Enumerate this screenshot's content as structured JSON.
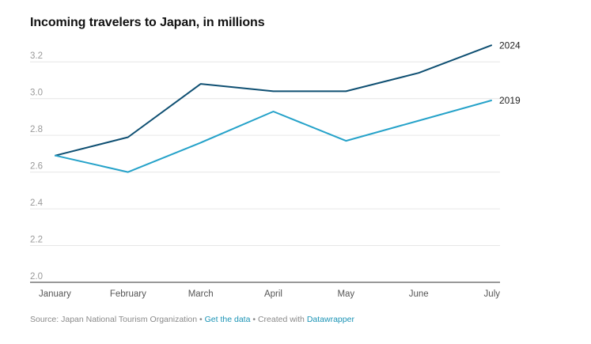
{
  "title": "Incoming travelers to Japan, in millions",
  "footer": {
    "source": "Source: Japan National Tourism Organization",
    "separator": "•",
    "get_data": "Get the data",
    "created_with": "Created with",
    "datawrapper": "Datawrapper"
  },
  "colors": {
    "series_2024": "#0e4f72",
    "series_2019": "#25a2c9",
    "grid": "#e6e6e6",
    "tick": "#999999",
    "link": "#1a93b5"
  },
  "chart_data": {
    "type": "line",
    "categories": [
      "January",
      "February",
      "March",
      "April",
      "May",
      "June",
      "July"
    ],
    "series": [
      {
        "name": "2024",
        "values": [
          2.69,
          2.79,
          3.08,
          3.04,
          3.04,
          3.14,
          3.29
        ]
      },
      {
        "name": "2019",
        "values": [
          2.69,
          2.6,
          2.76,
          2.93,
          2.77,
          2.88,
          2.99
        ]
      }
    ],
    "yticks": [
      "2.0",
      "2.2",
      "2.4",
      "2.6",
      "2.8",
      "3.0",
      "3.2"
    ],
    "ylim": [
      2.0,
      3.3
    ],
    "grid": true,
    "legend": "inline-right"
  }
}
